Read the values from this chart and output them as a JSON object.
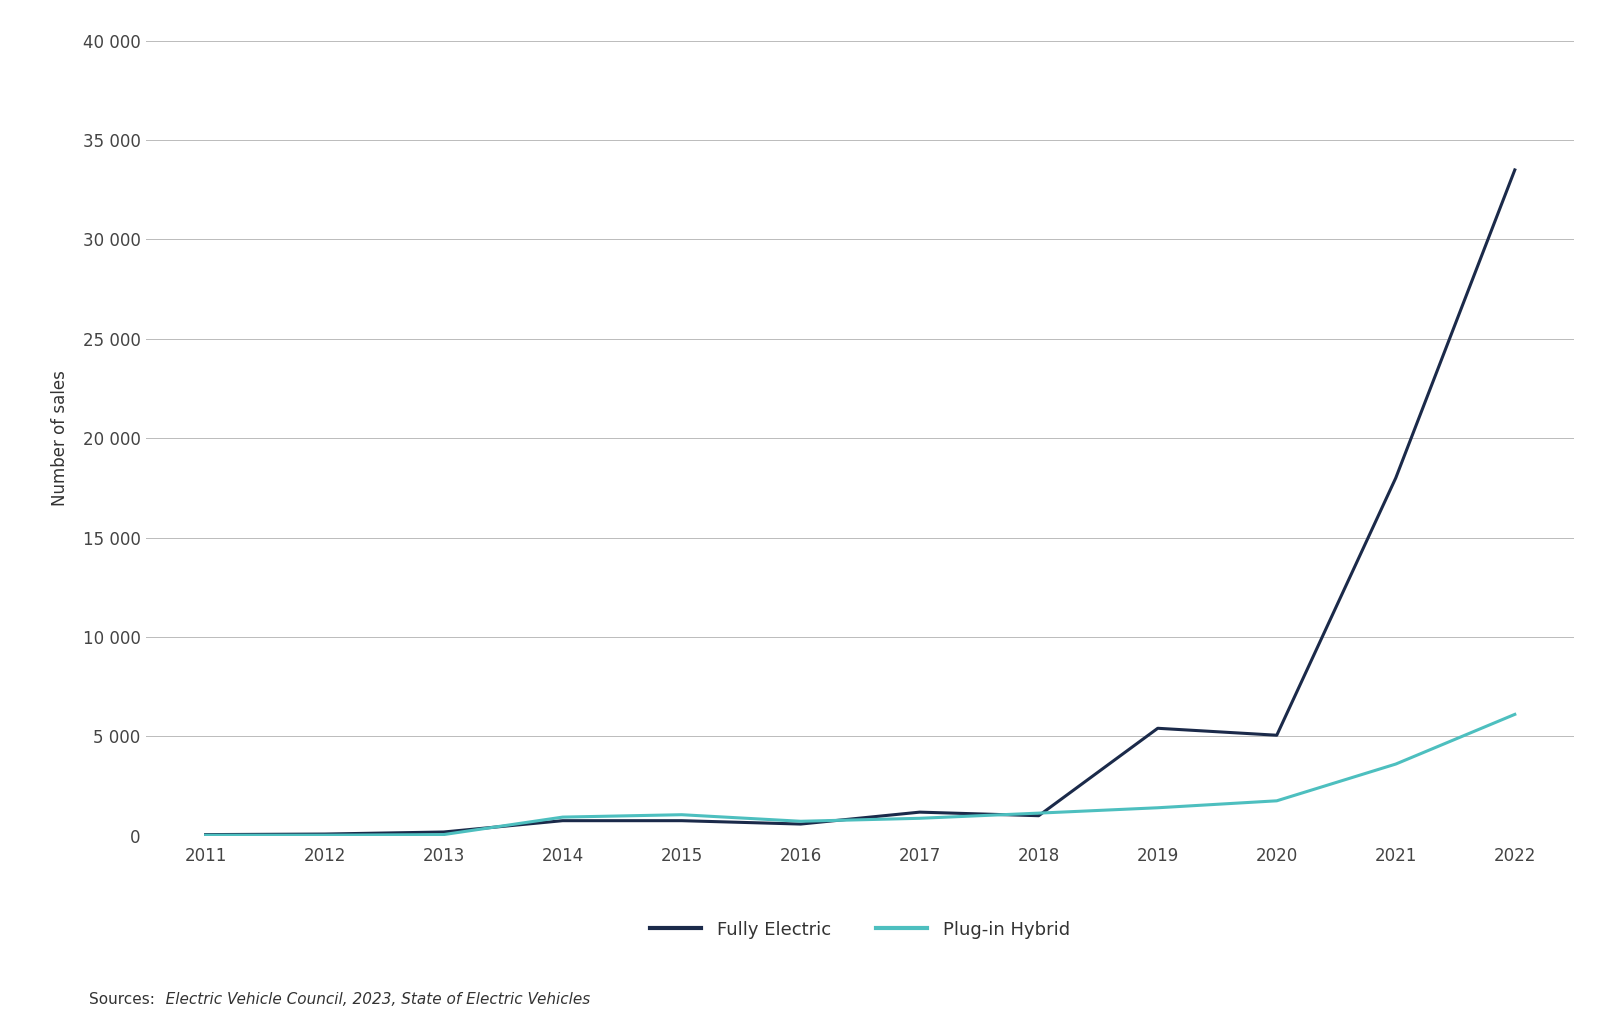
{
  "years": [
    2011,
    2012,
    2013,
    2014,
    2015,
    2016,
    2017,
    2018,
    2019,
    2020,
    2021,
    2022
  ],
  "fully_electric": [
    49,
    77,
    180,
    750,
    750,
    580,
    1180,
    1000,
    5400,
    5050,
    18000,
    33500
  ],
  "plug_in_hybrid": [
    20,
    20,
    50,
    930,
    1050,
    720,
    870,
    1130,
    1400,
    1750,
    3600,
    6100
  ],
  "fully_electric_color": "#1b2a4a",
  "plug_in_hybrid_color": "#4dbfbf",
  "line_width": 2.2,
  "ylabel": "Number of sales",
  "ylim": [
    0,
    40000
  ],
  "yticks": [
    0,
    5000,
    10000,
    15000,
    20000,
    25000,
    30000,
    35000,
    40000
  ],
  "ytick_labels": [
    "0",
    "5 000",
    "10 000",
    "15 000",
    "20 000",
    "25 000",
    "30 000",
    "35 000",
    "40 000"
  ],
  "legend_labels": [
    "Fully Electric",
    "Plug-in Hybrid"
  ],
  "source_label": "Sources:",
  "source_text": "   Electric Vehicle Council, 2023, State of Electric Vehicles",
  "background_color": "#ffffff",
  "grid_color": "#bbbbbb",
  "tick_color": "#444444",
  "label_color": "#333333"
}
